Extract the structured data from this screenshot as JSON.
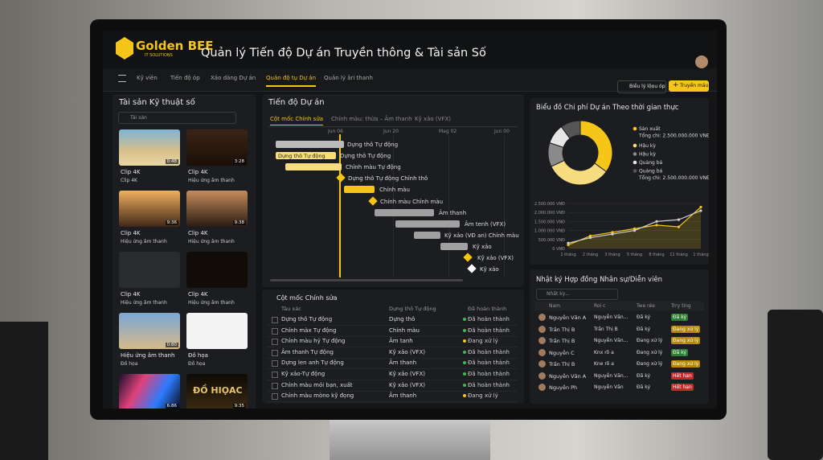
{
  "header": {
    "logo": "Golden BEE",
    "logo_sub": "IT SOLUTIONS",
    "title": "Quản lý Tiến độ Dự án Truyền thông & Tài sản Số"
  },
  "nav": {
    "items": [
      "Kỹ viên",
      "Tiến độ óp",
      "Xảo dàng Dự án",
      "Quản độ tụ Dự án",
      "Quản lý âri thanh"
    ],
    "active": 3,
    "button_secondary": "Biểu lý lộọu óp",
    "button_primary": "Truyền máu"
  },
  "assets": {
    "title": "Tài sản Kỹ thuật số",
    "search": "Tài sản",
    "items": [
      {
        "title": "Clip 4K",
        "tag": "Clip 4K",
        "duration": "0:48"
      },
      {
        "title": "Clip 4K",
        "tag": "Hiệu ứng âm thanh",
        "duration": "3:28"
      },
      {
        "title": "Clip 4K",
        "tag": "Hiệu ứng âm thanh",
        "duration": "9:36"
      },
      {
        "title": "Clip 4K",
        "tag": "Hiệu ứng âm thanh",
        "duration": "9:38"
      },
      {
        "title": "Clip 4K",
        "tag": "Hiệu ứng âm thanh"
      },
      {
        "title": "Clip 4K",
        "tag": "Hiệu ứng âm thanh"
      },
      {
        "title": "Hiệu ứng âm thanh",
        "tag": "Đồ họa",
        "duration": "0:80"
      },
      {
        "title": "Đồ họa",
        "tag": "Đồ họa"
      },
      {
        "duration": "6:86"
      },
      {
        "duration": "9:35",
        "caption": "ĐỒ HIỌAC"
      }
    ]
  },
  "gantt": {
    "title": "Tiến độ Dự án",
    "tabs": [
      "Cột mốc Chính sửa",
      "Chính màu: thừa – Âm thanh",
      "Kỹ xảo (VFX)"
    ],
    "active_tab": 0,
    "dates": [
      "Jun 06",
      "Jun 20",
      "Mag 02",
      "Jun 00"
    ],
    "tasks": [
      {
        "label": "Dựng thô Tự động"
      },
      {
        "label": "Dựng thô Tự động",
        "bar_label": "Dựng thô Tự động"
      },
      {
        "label": "Chỉnh màu Tự động"
      },
      {
        "label": "Dựng thô Tự động  Chỉnh thô"
      },
      {
        "label": "Chính màu"
      },
      {
        "label": "Chính màu Chỉnh màu"
      },
      {
        "label": "Âm thanh"
      },
      {
        "label": "Âm tenh (VFX)"
      },
      {
        "label": "Kỹ xảo (VĐ an)   Chính màu"
      },
      {
        "label": "Kỹ xảo"
      },
      {
        "label": "Kỹ xảo (VFX)"
      },
      {
        "label": "Kỹ xảo"
      }
    ]
  },
  "milestones": {
    "title": "Cột mốc Chính sửa",
    "columns": [
      "Tàu xác",
      "Dựng thô Tự động",
      "Đã hoàn thành"
    ],
    "rows": [
      {
        "cells": [
          "Dựng thô Tự động",
          "Dựng thô",
          "Đã hoàn thành"
        ],
        "dot": "#3fb950"
      },
      {
        "cells": [
          "Chỉnh màx Tự động",
          "Chính màu",
          "Đã hoàn thành"
        ],
        "dot": "#3fb950"
      },
      {
        "cells": [
          "Chỉnh màu hỷ Tự động",
          "Âm tanh",
          "Đang xử lý"
        ],
        "dot": "#f5c518"
      },
      {
        "cells": [
          "Âm thanh Tự động",
          "Kỹ xảo (VFX)",
          "Đã hoàn thành"
        ],
        "dot": "#3fb950"
      },
      {
        "cells": [
          "Dựng len anh Tự động",
          "Âm thanh",
          "Đã hoàn thành"
        ],
        "dot": "#3fb950"
      },
      {
        "cells": [
          "Kỹ xảo-Tự động",
          "Kỹ xảo (VFX)",
          "Đã hoàn thành"
        ],
        "dot": "#3fb950"
      },
      {
        "cells": [
          "Chỉnh màu mỏi bạn, xuất",
          "Kỹ xảo (VFX)",
          "Đã hoàn thành"
        ],
        "dot": "#3fb950"
      },
      {
        "cells": [
          "Chỉnh màu mòno kỹ đọng",
          "Âm thanh",
          "Đang xử lý"
        ],
        "dot": "#f5c518"
      }
    ]
  },
  "chart_data": [
    {
      "type": "pie",
      "title": "Biểu đồ Chi phí Dự án Theo thời gian thực",
      "categories": [
        "Sản xuất",
        "Hậu kỳ",
        "Hậu kỳ",
        "Quảng bá",
        "Quảng bá"
      ],
      "values": [
        35,
        33,
        12,
        10,
        10
      ],
      "colors": [
        "#f5c518",
        "#f7dc80",
        "#8a8a8a",
        "#e6e6e6",
        "#555555"
      ],
      "totals": [
        "Tổng chi: 2.500.000.000 VNĐ",
        null,
        null,
        null,
        "Tổng chi: 2.500.000.000 VNĐ"
      ]
    },
    {
      "type": "line",
      "categories": [
        "1 tháng",
        "2 tháng",
        "3 tháng",
        "5 tháng",
        "8 tháng",
        "11 tháng",
        "1 tháng"
      ],
      "series": [
        {
          "color": "#f5c518",
          "values": [
            200000,
            700000,
            900000,
            1100000,
            1300000,
            1200000,
            2300000
          ]
        },
        {
          "color": "#d0d0d0",
          "values": [
            300000,
            600000,
            800000,
            1000000,
            1500000,
            1600000,
            2100000
          ]
        }
      ],
      "ylim": [
        0,
        2500000
      ],
      "yticks": [
        {
          "value": 0,
          "label": "0 VNĐ"
        },
        {
          "value": 500000,
          "label": "500.000 VNĐ"
        },
        {
          "value": 1000000,
          "label": "1.000.000 VNĐ"
        },
        {
          "value": 1500000,
          "label": "1.500.000 VNĐ"
        },
        {
          "value": 2000000,
          "label": "2.000.000 VNĐ"
        },
        {
          "value": 2500000,
          "label": "2.500.000 VNĐ"
        }
      ],
      "grid": true
    }
  ],
  "contracts": {
    "title": "Nhật ký Hợp đồng Nhân sự/Diễn viên",
    "search": "Nhất kỳ...",
    "columns": [
      "Nam",
      "Roi c",
      "Twe rée",
      "Trry ting"
    ],
    "rows": [
      {
        "cells": [
          "Nguyễn Văn A",
          "Nguyễn Văn...",
          "Đã ký",
          "Đã ký"
        ],
        "tag_color": "#2e7d32"
      },
      {
        "cells": [
          "Trần Thị B",
          "Trần Thị B",
          "Đã ký",
          "Đang xử lý"
        ],
        "tag_color": "#b58900"
      },
      {
        "cells": [
          "Trần Thị B",
          "Nguyễn Văn...",
          "Đang xử lý",
          "Đang xử lý"
        ],
        "tag_color": "#b58900"
      },
      {
        "cells": [
          "Nguyễn C",
          "Knx rõ a",
          "Đang xử lý",
          "Đã ký"
        ],
        "tag_color": "#2e7d32"
      },
      {
        "cells": [
          "Trần Thị B",
          "Kne rõ a",
          "Đang xử lý",
          "Đang xử lý"
        ],
        "tag_color": "#b58900"
      },
      {
        "cells": [
          "Nguyễn Văn A",
          "Nguyễn Văn...",
          "Đã ký",
          "Hết hạn"
        ],
        "tag_color": "#c62828"
      },
      {
        "cells": [
          "Nguyễn Ph",
          "Nguyễn Văn",
          "Đã ký",
          "Hết hạn"
        ],
        "tag_color": "#c62828"
      }
    ]
  }
}
